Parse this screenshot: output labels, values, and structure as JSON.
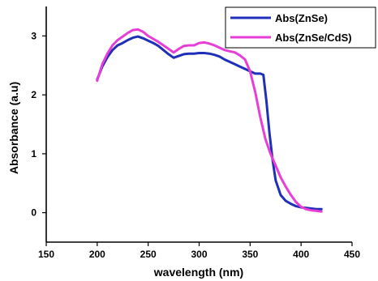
{
  "chart_data": {
    "type": "line",
    "title": "",
    "xlabel": "wavelength (nm)",
    "ylabel": "Absorbance (a.u)",
    "xlim": [
      150,
      450
    ],
    "ylim": [
      -0.5,
      3.5
    ],
    "xticks": [
      150,
      200,
      250,
      300,
      350,
      400,
      450
    ],
    "yticks": [
      0,
      1,
      2,
      3
    ],
    "legend_position": "top-right",
    "grid": false,
    "series": [
      {
        "name": "Abs(ZnSe)",
        "color": "#1f2fb8",
        "x": [
          200,
          205,
          210,
          215,
          220,
          225,
          230,
          235,
          240,
          245,
          250,
          255,
          260,
          265,
          270,
          275,
          280,
          285,
          290,
          295,
          300,
          305,
          310,
          315,
          320,
          325,
          330,
          335,
          340,
          345,
          350,
          355,
          360,
          363,
          366,
          369,
          372,
          375,
          380,
          385,
          390,
          395,
          400,
          405,
          410,
          415,
          420
        ],
        "y": [
          2.26,
          2.48,
          2.64,
          2.76,
          2.84,
          2.88,
          2.93,
          2.97,
          2.99,
          2.96,
          2.92,
          2.88,
          2.83,
          2.76,
          2.69,
          2.63,
          2.66,
          2.69,
          2.7,
          2.7,
          2.71,
          2.71,
          2.7,
          2.68,
          2.65,
          2.6,
          2.56,
          2.52,
          2.48,
          2.44,
          2.4,
          2.36,
          2.36,
          2.34,
          1.9,
          1.35,
          0.9,
          0.55,
          0.3,
          0.2,
          0.15,
          0.11,
          0.09,
          0.08,
          0.07,
          0.06,
          0.06
        ]
      },
      {
        "name": "Abs(ZnSe/CdS)",
        "color": "#e83ed8",
        "x": [
          200,
          205,
          210,
          215,
          220,
          225,
          230,
          235,
          240,
          245,
          250,
          255,
          260,
          265,
          270,
          275,
          280,
          285,
          290,
          295,
          300,
          305,
          310,
          315,
          320,
          325,
          330,
          335,
          340,
          345,
          350,
          355,
          360,
          365,
          370,
          375,
          380,
          385,
          390,
          395,
          400,
          405,
          410,
          415,
          420
        ],
        "y": [
          2.24,
          2.52,
          2.7,
          2.84,
          2.93,
          2.99,
          3.05,
          3.1,
          3.11,
          3.07,
          3.0,
          2.95,
          2.9,
          2.84,
          2.78,
          2.72,
          2.78,
          2.83,
          2.84,
          2.84,
          2.88,
          2.89,
          2.87,
          2.84,
          2.8,
          2.76,
          2.74,
          2.72,
          2.67,
          2.6,
          2.4,
          2.05,
          1.62,
          1.25,
          1.0,
          0.8,
          0.6,
          0.44,
          0.3,
          0.18,
          0.1,
          0.06,
          0.04,
          0.03,
          0.02
        ]
      }
    ]
  }
}
